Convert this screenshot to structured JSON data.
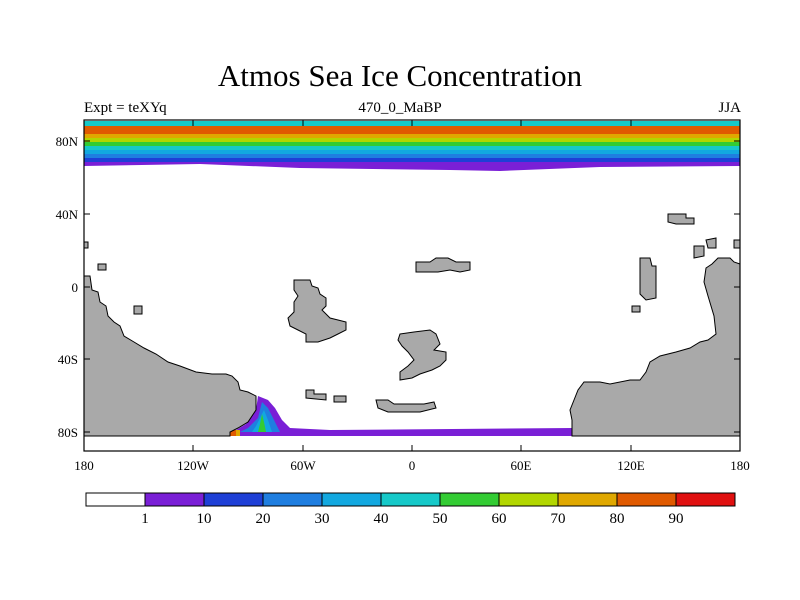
{
  "title": "Atmos Sea Ice Concentration",
  "subtitle_left": "Expt = teXYq",
  "subtitle_center": "470_0_MaBP",
  "subtitle_right": "JJA",
  "x_ticks": [
    "180",
    "120W",
    "60W",
    "0",
    "60E",
    "120E",
    "180"
  ],
  "y_ticks": [
    "80N",
    "40N",
    "0",
    "40S",
    "80S"
  ],
  "colorbar": {
    "labels": [
      "1",
      "10",
      "20",
      "30",
      "40",
      "50",
      "60",
      "70",
      "80",
      "90"
    ],
    "colors": [
      "#ffffff",
      "#7a1fd6",
      "#1e3fd6",
      "#1f7ee0",
      "#12a8e0",
      "#16c9c9",
      "#33cc33",
      "#b2d600",
      "#e0a800",
      "#e05a00",
      "#e01010"
    ]
  },
  "colors": {
    "land": "#a9a9a9",
    "land_outline": "#000000"
  }
}
